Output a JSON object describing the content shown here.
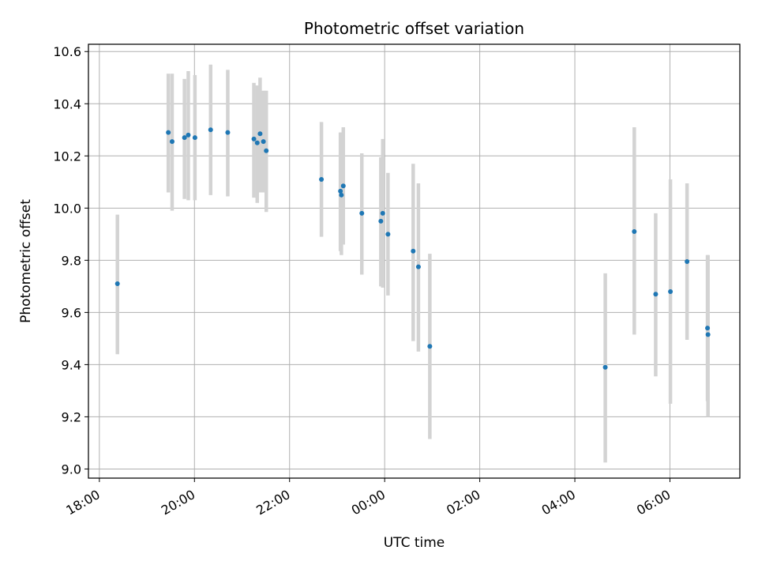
{
  "chart_data": {
    "type": "scatter",
    "title": "Photometric offset variation",
    "xlabel": "UTC time",
    "ylabel": "Photometric offset",
    "x_tick_labels": [
      "18:00",
      "20:00",
      "22:00",
      "00:00",
      "02:00",
      "04:00",
      "06:00"
    ],
    "x_tick_hours": [
      0,
      2,
      4,
      6,
      8,
      10,
      12
    ],
    "y_ticks": [
      9.0,
      9.2,
      9.4,
      9.6,
      9.8,
      10.0,
      10.2,
      10.4,
      10.6
    ],
    "xlim_hours": [
      -0.23,
      13.47
    ],
    "ylim": [
      8.965,
      10.628
    ],
    "grid": true,
    "colors": {
      "points": "#1f77b4",
      "errorbars": "#d3d3d3",
      "grid": "#b0b0b0"
    },
    "series": [
      {
        "points": [
          {
            "t": 0.38,
            "y": 9.71,
            "lo": 9.44,
            "hi": 9.975
          },
          {
            "t": 1.45,
            "y": 10.29,
            "lo": 10.06,
            "hi": 10.515
          },
          {
            "t": 1.53,
            "y": 10.255,
            "lo": 9.99,
            "hi": 10.515
          },
          {
            "t": 1.79,
            "y": 10.27,
            "lo": 10.035,
            "hi": 10.495
          },
          {
            "t": 1.87,
            "y": 10.28,
            "lo": 10.03,
            "hi": 10.525
          },
          {
            "t": 2.01,
            "y": 10.27,
            "lo": 10.03,
            "hi": 10.51
          },
          {
            "t": 2.34,
            "y": 10.3,
            "lo": 10.05,
            "hi": 10.55
          },
          {
            "t": 2.7,
            "y": 10.29,
            "lo": 10.045,
            "hi": 10.53
          },
          {
            "t": 3.25,
            "y": 10.265,
            "lo": 10.04,
            "hi": 10.48
          },
          {
            "t": 3.32,
            "y": 10.25,
            "lo": 10.02,
            "hi": 10.47
          },
          {
            "t": 3.38,
            "y": 10.285,
            "lo": 10.06,
            "hi": 10.5
          },
          {
            "t": 3.45,
            "y": 10.255,
            "lo": 10.06,
            "hi": 10.45
          },
          {
            "t": 3.51,
            "y": 10.22,
            "lo": 9.985,
            "hi": 10.45
          },
          {
            "t": 4.67,
            "y": 10.11,
            "lo": 9.89,
            "hi": 10.33
          },
          {
            "t": 5.07,
            "y": 10.065,
            "lo": 9.835,
            "hi": 10.29
          },
          {
            "t": 5.09,
            "y": 10.05,
            "lo": 9.82,
            "hi": 10.29
          },
          {
            "t": 5.13,
            "y": 10.085,
            "lo": 9.86,
            "hi": 10.31
          },
          {
            "t": 5.52,
            "y": 9.98,
            "lo": 9.745,
            "hi": 10.21
          },
          {
            "t": 5.92,
            "y": 9.95,
            "lo": 9.7,
            "hi": 10.195
          },
          {
            "t": 5.96,
            "y": 9.98,
            "lo": 9.695,
            "hi": 10.265
          },
          {
            "t": 6.07,
            "y": 9.9,
            "lo": 9.665,
            "hi": 10.135
          },
          {
            "t": 6.6,
            "y": 9.835,
            "lo": 9.49,
            "hi": 10.17
          },
          {
            "t": 6.71,
            "y": 9.775,
            "lo": 9.45,
            "hi": 10.095
          },
          {
            "t": 6.95,
            "y": 9.47,
            "lo": 9.115,
            "hi": 9.825
          },
          {
            "t": 10.64,
            "y": 9.39,
            "lo": 9.025,
            "hi": 9.75
          },
          {
            "t": 11.25,
            "y": 9.91,
            "lo": 9.515,
            "hi": 10.31
          },
          {
            "t": 11.7,
            "y": 9.67,
            "lo": 9.355,
            "hi": 9.98
          },
          {
            "t": 12.01,
            "y": 9.68,
            "lo": 9.25,
            "hi": 10.11
          },
          {
            "t": 12.36,
            "y": 9.795,
            "lo": 9.495,
            "hi": 10.095
          },
          {
            "t": 12.79,
            "y": 9.54,
            "lo": 9.26,
            "hi": 9.82
          },
          {
            "t": 12.8,
            "y": 9.515,
            "lo": 9.2,
            "hi": 9.82
          }
        ]
      }
    ]
  }
}
